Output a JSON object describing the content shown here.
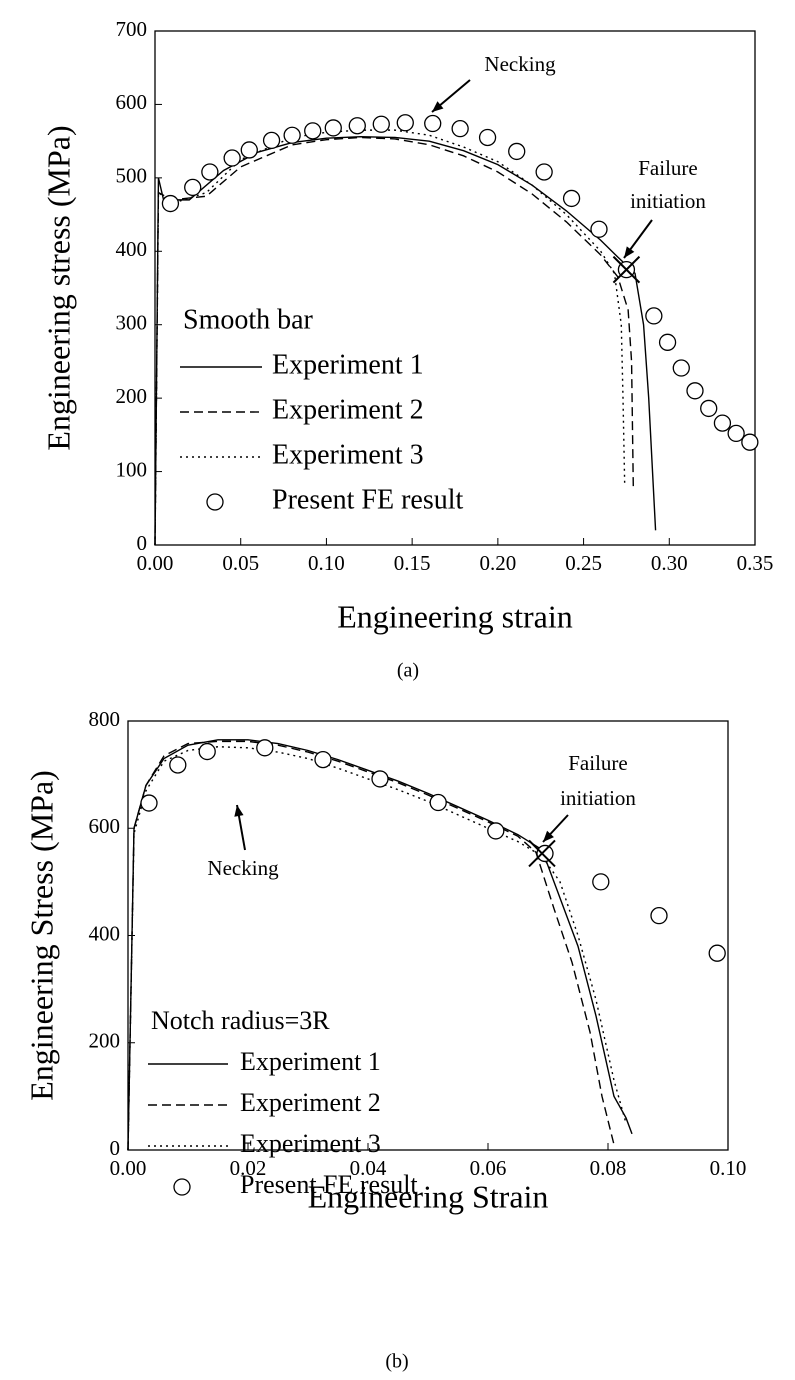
{
  "chart_data": [
    {
      "type": "line",
      "x_label": "Engineering strain",
      "y_label": "Engineering stress (MPa)",
      "caption": "(a)",
      "legend_title": "Smooth bar",
      "annotations": [
        "Necking",
        "Failure",
        "initiation"
      ],
      "failure_point": {
        "x": 0.275,
        "y": 375
      },
      "xlim": [
        0,
        0.35
      ],
      "ylim": [
        0,
        700
      ],
      "xticks": [
        {
          "value": 0,
          "label": "0.00"
        },
        0.05,
        {
          "value": 0.1,
          "label": "0.10"
        },
        0.15,
        {
          "value": 0.2,
          "label": "0.20"
        },
        0.25,
        {
          "value": 0.3,
          "label": "0.30"
        },
        0.35
      ],
      "yticks": [
        0,
        100,
        200,
        300,
        400,
        500,
        600,
        700
      ],
      "series": [
        {
          "name": "Experiment 1",
          "color": "#000000",
          "style": "solid",
          "x": [
            0,
            0.002,
            0.005,
            0.02,
            0.04,
            0.06,
            0.08,
            0.1,
            0.12,
            0.14,
            0.16,
            0.18,
            0.2,
            0.22,
            0.24,
            0.26,
            0.27,
            0.28,
            0.285,
            0.288,
            0.292
          ],
          "values": [
            0,
            500,
            470,
            470,
            510,
            535,
            548,
            554,
            556,
            555,
            550,
            537,
            518,
            490,
            455,
            415,
            392,
            370,
            300,
            200,
            20
          ]
        },
        {
          "name": "Experiment 2",
          "color": "#000000",
          "style": "dashed",
          "x": [
            0,
            0.002,
            0.01,
            0.03,
            0.05,
            0.08,
            0.1,
            0.12,
            0.14,
            0.16,
            0.18,
            0.2,
            0.22,
            0.24,
            0.26,
            0.27,
            0.276,
            0.278,
            0.279
          ],
          "values": [
            0,
            480,
            470,
            475,
            515,
            545,
            552,
            555,
            553,
            545,
            530,
            508,
            478,
            440,
            395,
            365,
            320,
            250,
            80
          ]
        },
        {
          "name": "Experiment 3",
          "color": "#000000",
          "style": "dotted",
          "x": [
            0,
            0.002,
            0.01,
            0.03,
            0.05,
            0.08,
            0.1,
            0.12,
            0.14,
            0.16,
            0.18,
            0.2,
            0.22,
            0.24,
            0.26,
            0.268,
            0.272,
            0.273,
            0.274
          ],
          "values": [
            0,
            480,
            465,
            480,
            525,
            555,
            562,
            565,
            565,
            558,
            542,
            522,
            490,
            450,
            400,
            370,
            300,
            200,
            80
          ]
        },
        {
          "name": "Present FE result",
          "color": "#000000",
          "style": "markers",
          "x": [
            0.009,
            0.022,
            0.032,
            0.045,
            0.055,
            0.068,
            0.08,
            0.092,
            0.104,
            0.118,
            0.132,
            0.146,
            0.162,
            0.178,
            0.194,
            0.211,
            0.227,
            0.243,
            0.259,
            0.275,
            0.291,
            0.299,
            0.307,
            0.315,
            0.323,
            0.331,
            0.339,
            0.347
          ],
          "values": [
            465,
            487,
            508,
            527,
            538,
            551,
            558,
            564,
            568,
            571,
            573,
            575,
            574,
            567,
            555,
            536,
            508,
            472,
            430,
            375,
            312,
            276,
            241,
            210,
            186,
            166,
            152,
            140
          ]
        }
      ]
    },
    {
      "type": "line",
      "x_label": "Engineering Strain",
      "y_label": "Engineering Stress (MPa)",
      "caption": "(b)",
      "legend_title": "Notch radius=3R",
      "annotations": [
        "Necking",
        "Failure",
        "initiation"
      ],
      "failure_point": {
        "x": 0.069,
        "y": 553
      },
      "xlim": [
        0,
        0.1
      ],
      "ylim": [
        0,
        800
      ],
      "xticks": [
        {
          "value": 0,
          "label": "0.00"
        },
        0.02,
        0.04,
        0.06,
        0.08,
        {
          "value": 0.1,
          "label": "0.10"
        }
      ],
      "yticks": [
        0,
        200,
        400,
        600,
        800
      ],
      "series": [
        {
          "name": "Experiment 1",
          "color": "#000000",
          "style": "solid",
          "x": [
            0,
            0.001,
            0.003,
            0.006,
            0.01,
            0.015,
            0.02,
            0.025,
            0.03,
            0.035,
            0.04,
            0.045,
            0.05,
            0.055,
            0.06,
            0.065,
            0.069,
            0.072,
            0.075,
            0.078,
            0.081,
            0.083,
            0.084
          ],
          "values": [
            0,
            600,
            680,
            730,
            755,
            765,
            765,
            758,
            745,
            728,
            708,
            688,
            665,
            640,
            615,
            588,
            560,
            470,
            380,
            250,
            100,
            60,
            30
          ]
        },
        {
          "name": "Experiment 2",
          "color": "#000000",
          "style": "dashed",
          "x": [
            0,
            0.001,
            0.003,
            0.006,
            0.01,
            0.015,
            0.02,
            0.025,
            0.03,
            0.035,
            0.04,
            0.045,
            0.05,
            0.055,
            0.06,
            0.065,
            0.068,
            0.071,
            0.074,
            0.077,
            0.079,
            0.081
          ],
          "values": [
            0,
            600,
            680,
            735,
            758,
            762,
            762,
            755,
            742,
            725,
            705,
            685,
            662,
            637,
            612,
            585,
            555,
            450,
            350,
            220,
            100,
            10
          ]
        },
        {
          "name": "Experiment 3",
          "color": "#000000",
          "style": "dotted",
          "x": [
            0,
            0.001,
            0.003,
            0.006,
            0.01,
            0.015,
            0.02,
            0.025,
            0.03,
            0.035,
            0.04,
            0.045,
            0.05,
            0.055,
            0.06,
            0.065,
            0.069,
            0.072,
            0.075,
            0.078,
            0.081,
            0.083
          ],
          "values": [
            0,
            590,
            670,
            725,
            745,
            752,
            750,
            742,
            730,
            712,
            692,
            672,
            650,
            625,
            600,
            575,
            548,
            500,
            400,
            280,
            130,
            50
          ]
        },
        {
          "name": "Present FE result",
          "color": "#000000",
          "style": "markers",
          "x": [
            0.0035,
            0.0083,
            0.0132,
            0.0228,
            0.0325,
            0.042,
            0.0517,
            0.0613,
            0.0695,
            0.0788,
            0.0885,
            0.0982
          ],
          "values": [
            647,
            718,
            743,
            750,
            728,
            692,
            648,
            595,
            553,
            500,
            437,
            367
          ]
        }
      ]
    }
  ]
}
